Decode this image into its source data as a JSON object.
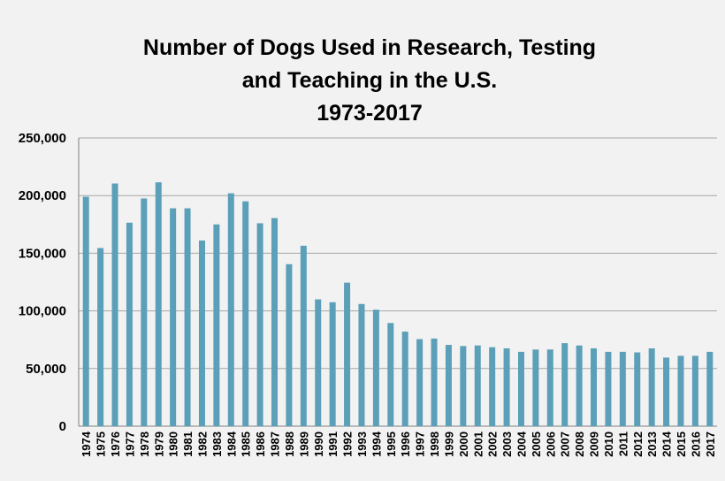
{
  "chart_data": {
    "type": "bar",
    "title_lines": [
      "Number of Dogs Used in Research, Testing",
      "and Teaching in the U.S.",
      "1973-2017"
    ],
    "xlabel": "",
    "ylabel": "",
    "ylim": [
      0,
      250000
    ],
    "y_ticks": [
      0,
      50000,
      100000,
      150000,
      200000,
      250000
    ],
    "y_tick_labels": [
      "0",
      "50,000",
      "100,000",
      "150,000",
      "200,000",
      "250,000"
    ],
    "grid": true,
    "bar_color": "#5b9fb8",
    "categories": [
      "1974",
      "1975",
      "1976",
      "1977",
      "1978",
      "1979",
      "1980",
      "1981",
      "1982",
      "1983",
      "1984",
      "1985",
      "1986",
      "1987",
      "1988",
      "1989",
      "1990",
      "1991",
      "1992",
      "1993",
      "1994",
      "1995",
      "1996",
      "1997",
      "1998",
      "1999",
      "2000",
      "2001",
      "2002",
      "2003",
      "2004",
      "2005",
      "2006",
      "2007",
      "2008",
      "2009",
      "2010",
      "2011",
      "2012",
      "2013",
      "2014",
      "2015",
      "2016",
      "2017"
    ],
    "values": [
      199000,
      154500,
      210500,
      176500,
      197500,
      211500,
      189000,
      189000,
      161000,
      175000,
      202000,
      195000,
      176000,
      180500,
      140500,
      156500,
      110000,
      107500,
      124500,
      106000,
      101000,
      89500,
      82000,
      75500,
      76000,
      70500,
      69500,
      70000,
      68500,
      67500,
      64500,
      66500,
      66500,
      72000,
      70000,
      67500,
      64500,
      64500,
      64000,
      67500,
      59500,
      61000,
      61000,
      64500
    ]
  }
}
